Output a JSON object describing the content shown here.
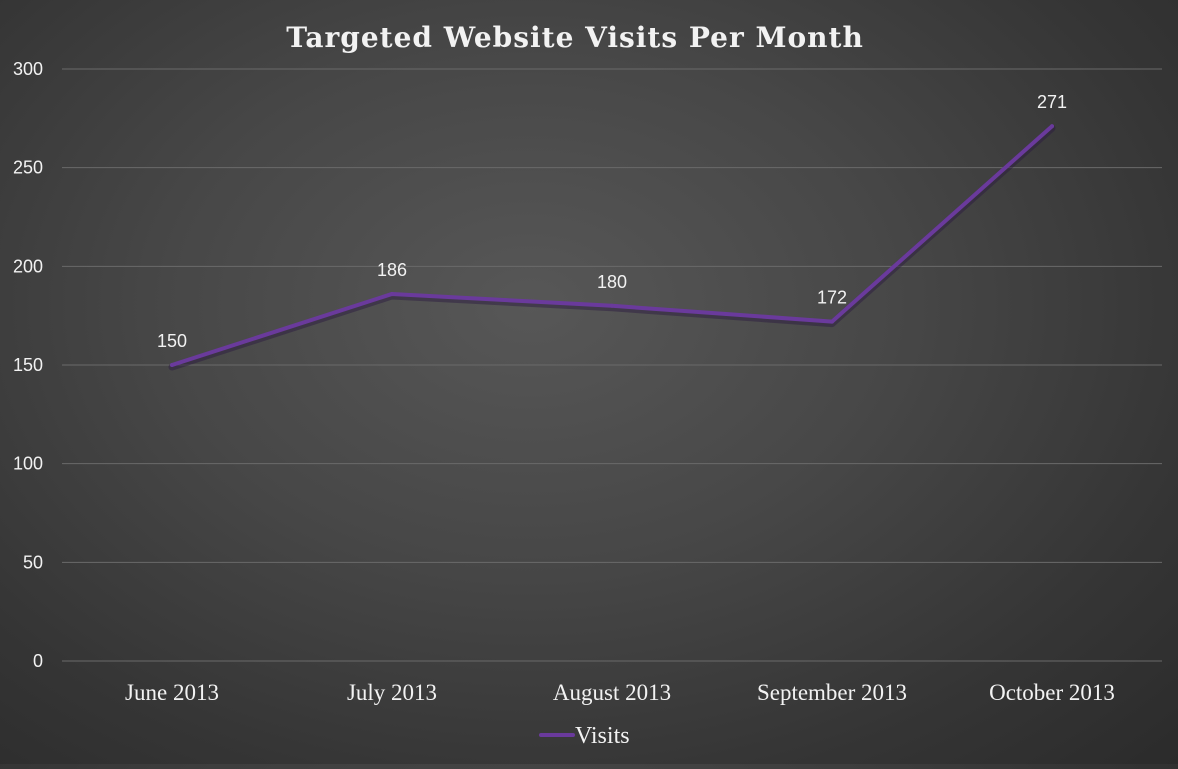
{
  "chart_data": {
    "type": "line",
    "title": "Targeted Website Visits Per Month",
    "xlabel": "",
    "ylabel": "",
    "categories": [
      "June 2013",
      "July 2013",
      "August 2013",
      "September 2013",
      "October 2013"
    ],
    "series": [
      {
        "name": "Visits",
        "values": [
          150,
          186,
          180,
          172,
          271
        ],
        "color": "#6a3a9c"
      }
    ],
    "data_labels": [
      "150",
      "186",
      "180",
      "172",
      "271"
    ],
    "ylim": [
      0,
      300
    ],
    "yticks": [
      {
        "value": 0,
        "label": "0"
      },
      {
        "value": 50,
        "label": "50"
      },
      {
        "value": 100,
        "label": "100"
      },
      {
        "value": 150,
        "label": "150"
      },
      {
        "value": 200,
        "label": "200"
      },
      {
        "value": 250,
        "label": "250"
      },
      {
        "value": 300,
        "label": "300"
      }
    ],
    "grid": true,
    "legend": {
      "placement": "bottom",
      "entries": [
        "Visits"
      ]
    },
    "colors": {
      "line": "#6a3a9c",
      "text": "#f2f2f2",
      "gridline": "#6a6a6a"
    }
  }
}
